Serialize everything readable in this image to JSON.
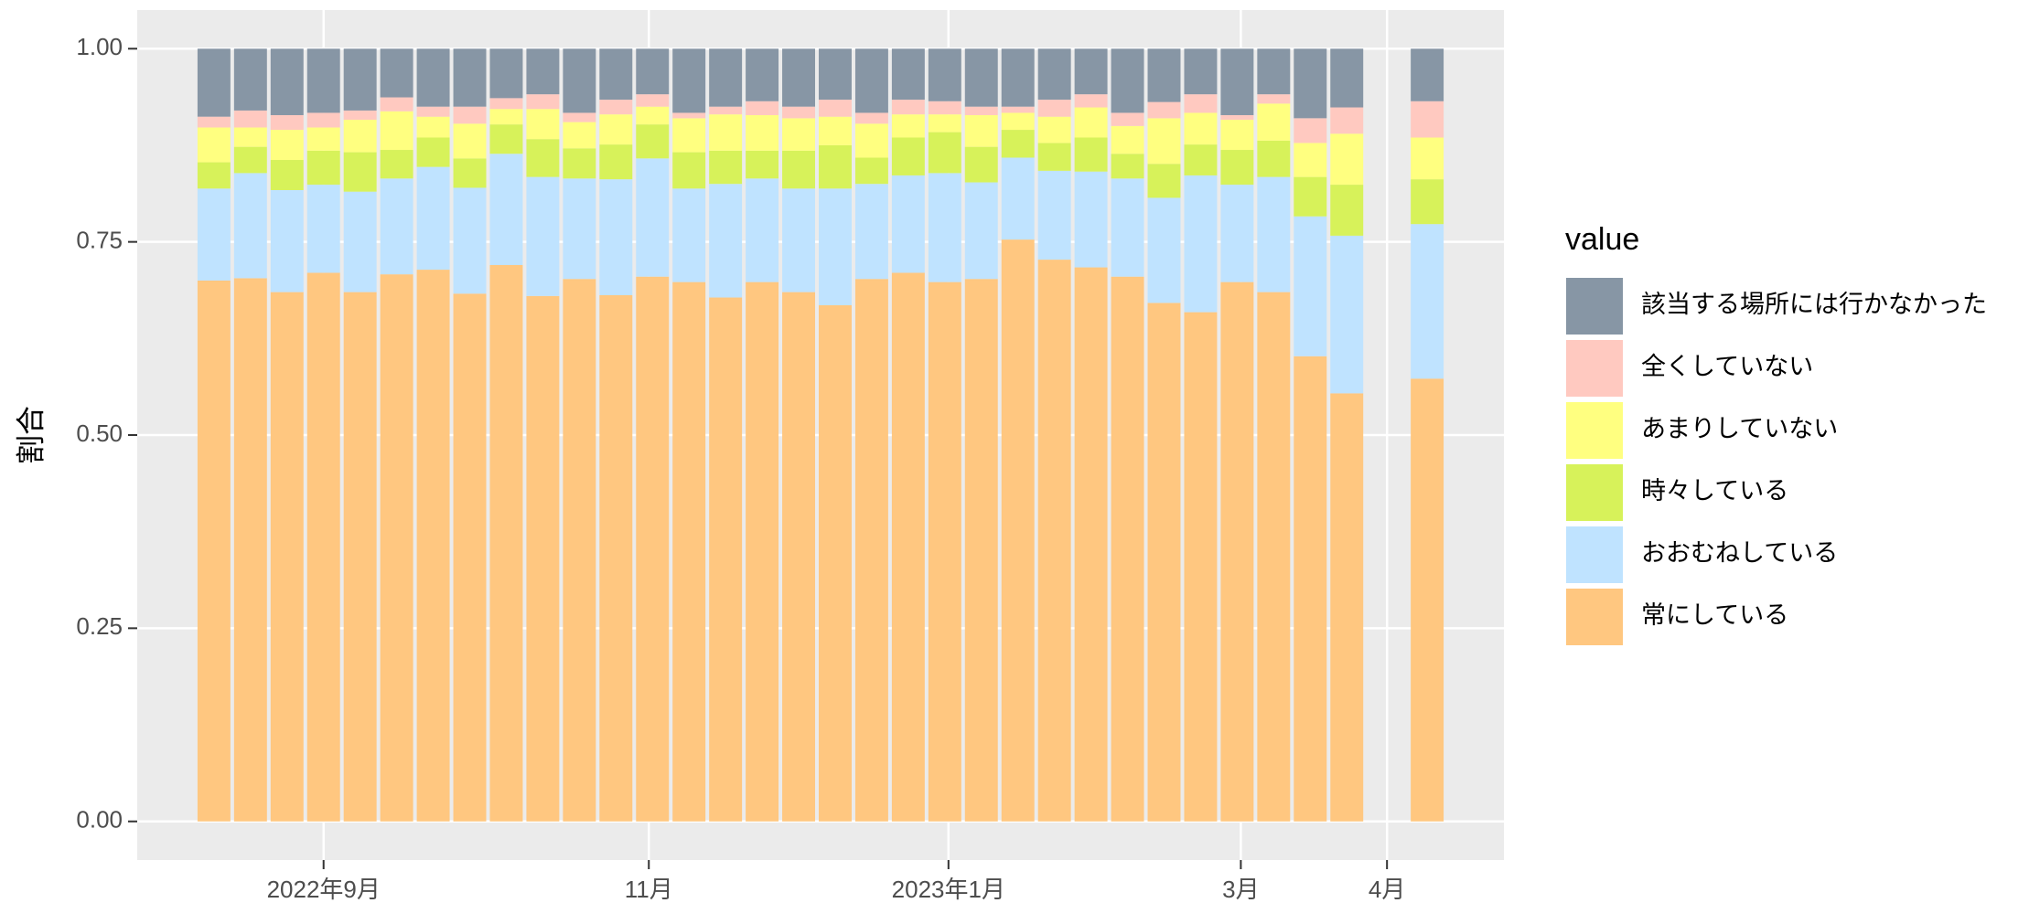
{
  "chart_data": {
    "type": "stacked_bar",
    "y_label": "割合",
    "legend_title": "value",
    "x": [
      1,
      2,
      3,
      4,
      5,
      6,
      7,
      8,
      9,
      10,
      11,
      12,
      13,
      14,
      15,
      16,
      17,
      18,
      19,
      20,
      21,
      22,
      23,
      24,
      25,
      26,
      27,
      28,
      29,
      30,
      31,
      32,
      34.2
    ],
    "xlim": [
      -1.1,
      36.3
    ],
    "xticks": [
      {
        "value": 4,
        "label": "2022年9月"
      },
      {
        "value": 12.9,
        "label": "11月"
      },
      {
        "value": 21.1,
        "label": "2023年1月"
      },
      {
        "value": 29.1,
        "label": "3月"
      },
      {
        "value": 33.1,
        "label": "4月"
      }
    ],
    "ylim": [
      -0.05,
      1.05
    ],
    "yticks": [
      {
        "value": 0,
        "label": "0.00"
      },
      {
        "value": 0.25,
        "label": "0.25"
      },
      {
        "value": 0.5,
        "label": "0.50"
      },
      {
        "value": 0.75,
        "label": "0.75"
      },
      {
        "value": 1,
        "label": "1.00"
      }
    ],
    "grid": true,
    "legend_position": "right",
    "series": [
      {
        "name": "該当する場所には行かなかった",
        "color": "#8796a5",
        "values": [
          0.088,
          0.08,
          0.086,
          0.083,
          0.08,
          0.063,
          0.075,
          0.075,
          0.064,
          0.059,
          0.083,
          0.066,
          0.059,
          0.083,
          0.075,
          0.068,
          0.075,
          0.066,
          0.083,
          0.066,
          0.068,
          0.075,
          0.075,
          0.066,
          0.059,
          0.083,
          0.069,
          0.059,
          0.086,
          0.059,
          0.09,
          0.076,
          0.068
        ]
      },
      {
        "name": "全くしていない",
        "color": "#ffc9c0",
        "values": [
          0.014,
          0.022,
          0.019,
          0.019,
          0.012,
          0.018,
          0.013,
          0.022,
          0.014,
          0.019,
          0.012,
          0.019,
          0.016,
          0.007,
          0.01,
          0.018,
          0.015,
          0.022,
          0.014,
          0.019,
          0.017,
          0.011,
          0.008,
          0.022,
          0.017,
          0.017,
          0.021,
          0.024,
          0.006,
          0.012,
          0.032,
          0.034,
          0.047
        ]
      },
      {
        "name": "あまりしていない",
        "color": "#ffff80",
        "values": [
          0.045,
          0.025,
          0.039,
          0.03,
          0.042,
          0.05,
          0.027,
          0.045,
          0.02,
          0.039,
          0.034,
          0.039,
          0.023,
          0.044,
          0.047,
          0.046,
          0.042,
          0.037,
          0.044,
          0.03,
          0.023,
          0.041,
          0.022,
          0.034,
          0.039,
          0.036,
          0.059,
          0.041,
          0.039,
          0.048,
          0.044,
          0.066,
          0.054
        ]
      },
      {
        "name": "時々している",
        "color": "#d7f25a",
        "values": [
          0.034,
          0.034,
          0.039,
          0.044,
          0.051,
          0.037,
          0.038,
          0.038,
          0.038,
          0.049,
          0.039,
          0.045,
          0.044,
          0.047,
          0.043,
          0.036,
          0.049,
          0.056,
          0.034,
          0.049,
          0.053,
          0.046,
          0.036,
          0.036,
          0.044,
          0.032,
          0.044,
          0.04,
          0.045,
          0.047,
          0.051,
          0.066,
          0.058
        ]
      },
      {
        "name": "おおむねしている",
        "color": "#bfe3ff",
        "values": [
          0.119,
          0.136,
          0.132,
          0.114,
          0.13,
          0.124,
          0.133,
          0.137,
          0.144,
          0.154,
          0.13,
          0.15,
          0.153,
          0.121,
          0.147,
          0.134,
          0.134,
          0.151,
          0.123,
          0.126,
          0.141,
          0.125,
          0.106,
          0.115,
          0.124,
          0.127,
          0.136,
          0.177,
          0.126,
          0.149,
          0.181,
          0.204,
          0.2
        ]
      },
      {
        "name": "常にしている",
        "color": "#ffc780",
        "values": [
          0.7,
          0.703,
          0.685,
          0.71,
          0.685,
          0.708,
          0.714,
          0.683,
          0.72,
          0.68,
          0.702,
          0.681,
          0.705,
          0.698,
          0.678,
          0.698,
          0.685,
          0.668,
          0.702,
          0.71,
          0.698,
          0.702,
          0.753,
          0.727,
          0.717,
          0.705,
          0.671,
          0.659,
          0.698,
          0.685,
          0.602,
          0.554,
          0.573
        ]
      }
    ]
  }
}
